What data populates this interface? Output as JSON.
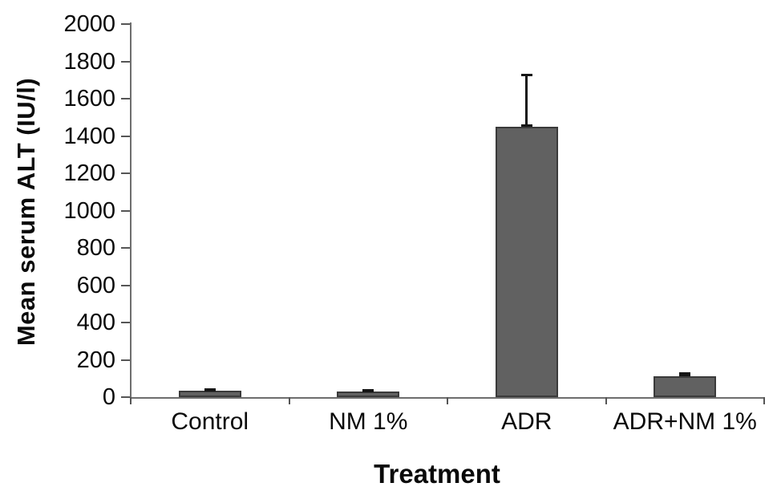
{
  "chart_data": {
    "type": "bar",
    "title": "",
    "categories": [
      "Control",
      "NM 1%",
      "ADR",
      "ADR+NM 1%"
    ],
    "values": [
      35,
      30,
      1450,
      110
    ],
    "errors_upper": [
      10,
      8,
      285,
      22
    ],
    "xlabel": "Treatment",
    "ylabel": "Mean serum ALT (IU/l)",
    "ylim": [
      0,
      2000
    ],
    "ytick_step": 200,
    "yticks": [
      0,
      200,
      400,
      600,
      800,
      1000,
      1200,
      1400,
      1600,
      1800,
      2000
    ],
    "grid": false,
    "legend": "none",
    "bar_color": "#616161",
    "bar_border_color": "#3a3a3a",
    "error_bar_color": "#151515",
    "axis_color": "#6e6e6e",
    "tick_color": "#555555",
    "text_color": "#0a0a0a",
    "background_color": "#ffffff"
  }
}
